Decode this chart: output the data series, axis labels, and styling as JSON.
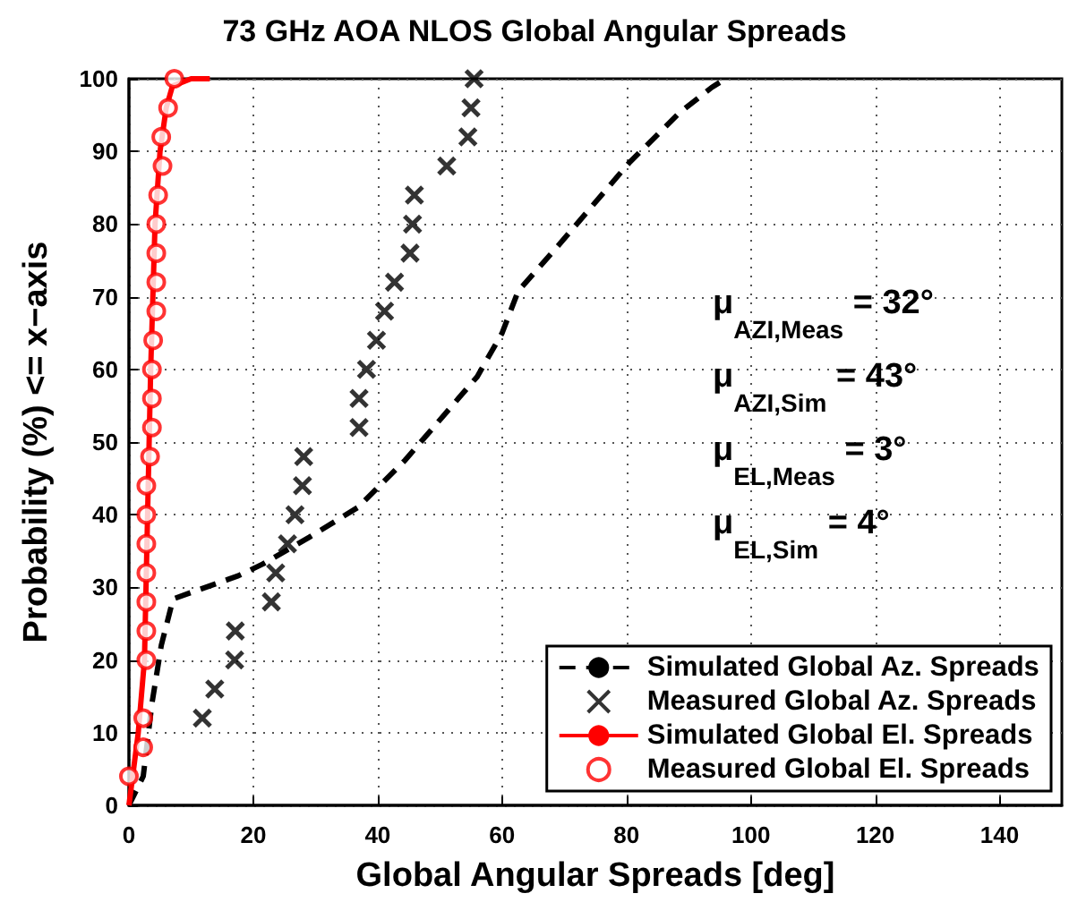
{
  "chart_data": {
    "type": "line",
    "title": "73 GHz AOA NLOS Global Angular Spreads",
    "xlabel": "Global Angular Spreads [deg]",
    "ylabel": "Probability (%) <= x−axis",
    "xlim": [
      0,
      150
    ],
    "xticks": [
      0,
      20,
      40,
      60,
      80,
      100,
      120,
      140
    ],
    "ylim": [
      0,
      100
    ],
    "yticks": [
      0,
      10,
      20,
      30,
      40,
      50,
      60,
      70,
      80,
      90,
      100
    ],
    "grid": true,
    "legend": "bottom right",
    "annotations": [
      "μ$_{AZI,Meas}$ = 32°",
      "μ$_{AZI,Sim}$ = 43°",
      "μ$_{EL,Meas}$ = 3°",
      "μ$_{EL,Sim}$ = 4°"
    ],
    "series": [
      {
        "name": "Simulated Global Az. Spreads",
        "type": "line",
        "color": "#000000",
        "line_style": "dashed",
        "marker": "none",
        "x": [
          0,
          2.3,
          3.7,
          5.2,
          7.1,
          10,
          17.6,
          21.5,
          29,
          36.8,
          44.4,
          56,
          60,
          62.6,
          69.3,
          80.4,
          88.5,
          93.7,
          95
        ],
        "values": [
          0,
          4,
          14,
          22,
          28.4,
          29.3,
          31.6,
          33.2,
          36.9,
          41,
          47.5,
          59,
          65,
          70.8,
          77.3,
          88.4,
          95.3,
          98.8,
          99.5
        ]
      },
      {
        "name": "Measured Global Az. Spreads",
        "type": "scatter",
        "color": "#000000",
        "marker": "cross",
        "x": [
          11.8,
          13.8,
          17,
          17.1,
          22.9,
          23.6,
          25.5,
          26.7,
          27.9,
          28.1,
          37,
          37,
          38.2,
          39.8,
          41.1,
          42.7,
          45.2,
          45.6,
          45.9,
          51.1,
          54.5,
          55,
          55.5
        ],
        "values": [
          12,
          16,
          20,
          24,
          28,
          32,
          36,
          40,
          44,
          48,
          52,
          56,
          60,
          64,
          68,
          72,
          76,
          80,
          84,
          88,
          92,
          96,
          100
        ]
      },
      {
        "name": "Simulated Global El. Spreads",
        "type": "line",
        "color": "#ff0000",
        "line_style": "solid",
        "marker": "none",
        "x": [
          0,
          1.5,
          2.5,
          3,
          3.5,
          4.2,
          5,
          6,
          7,
          10,
          13
        ],
        "values": [
          0,
          10,
          20,
          40,
          60,
          80,
          90,
          96,
          99,
          100,
          100
        ]
      },
      {
        "name": "Measured Global El. Spreads",
        "type": "scatter",
        "color": "#ff0000",
        "marker": "circle",
        "x": [
          0,
          2.3,
          2.3,
          2.8,
          2.8,
          2.8,
          2.8,
          2.8,
          2.8,
          2.8,
          3.4,
          3.7,
          3.7,
          3.7,
          3.9,
          4.4,
          4.4,
          4.4,
          4.4,
          4.7,
          5.4,
          5.2,
          6.3,
          7.3
        ],
        "values": [
          4,
          8,
          12,
          20,
          24,
          28,
          32,
          36,
          40,
          44,
          48,
          52,
          56,
          60,
          64,
          68,
          72,
          76,
          80,
          84,
          88,
          92,
          96,
          100
        ]
      }
    ]
  }
}
